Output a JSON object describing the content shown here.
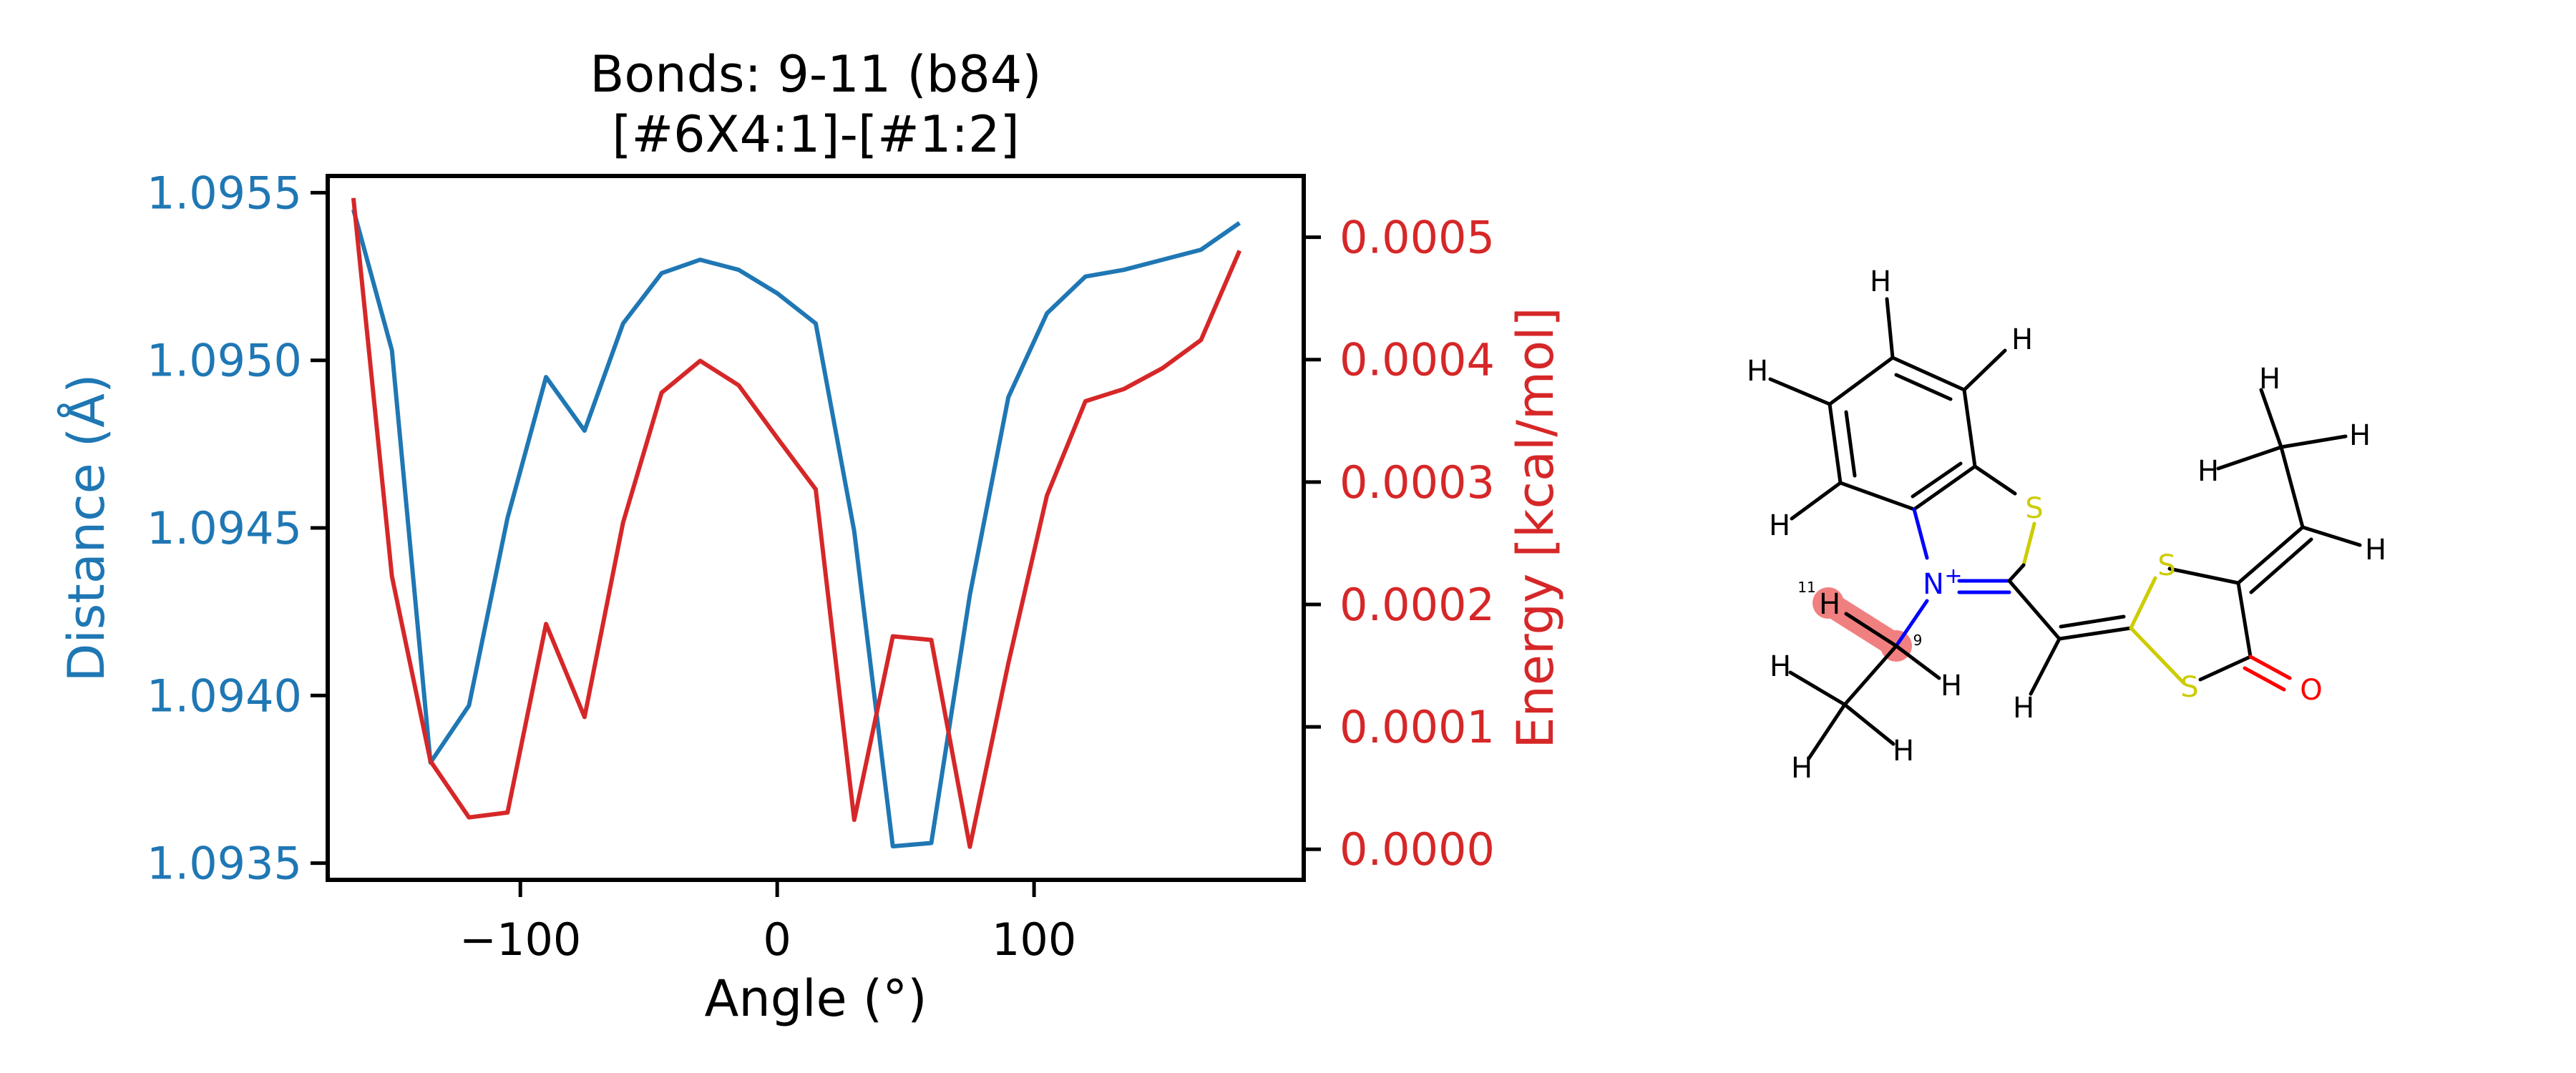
{
  "chart_data": {
    "type": "line",
    "title": "Bonds: 9-11 (b84)",
    "subtitle": "[#6X4:1]-[#1:2]",
    "xlabel": "Angle (°)",
    "ylabel": "Distance (Å)",
    "y2label": "Energy [kcal/mol]",
    "xlim": [
      -175,
      205
    ],
    "ylim": [
      1.09345,
      1.09555
    ],
    "y2lim": [
      -2.5e-05,
      0.00055
    ],
    "xticks": [
      -100,
      0,
      100
    ],
    "xtick_labels": [
      "−100",
      "0",
      "100"
    ],
    "yticks": [
      1.0935,
      1.094,
      1.0945,
      1.095,
      1.0955
    ],
    "ytick_labels": [
      "1.0935",
      "1.0940",
      "1.0945",
      "1.0950",
      "1.0955"
    ],
    "y2ticks": [
      0,
      0.0001,
      0.0002,
      0.0003,
      0.0004,
      0.0005
    ],
    "y2tick_labels": [
      "0.0000",
      "0.0001",
      "0.0002",
      "0.0003",
      "0.0004",
      "0.0005"
    ],
    "grid": false,
    "x": [
      -165,
      -150,
      -135,
      -120,
      -105,
      -90,
      -75,
      -60,
      -45,
      -30,
      -15,
      0,
      15,
      30,
      45,
      60,
      75,
      90,
      105,
      120,
      135,
      150,
      165,
      180
    ],
    "series": [
      {
        "axis": "left",
        "color": "#1f77b4",
        "values": [
          1.09545,
          1.09503,
          1.0938,
          1.09397,
          1.09453,
          1.09495,
          1.09479,
          1.09511,
          1.09526,
          1.0953,
          1.09527,
          1.0952,
          1.09511,
          1.09449,
          1.09355,
          1.09356,
          1.0943,
          1.09489,
          1.09514,
          1.09525,
          1.09527,
          1.0953,
          1.09533,
          1.09541
        ]
      },
      {
        "axis": "right",
        "color": "#d62728",
        "values": [
          0.000532,
          0.000223,
          7.2e-05,
          2.6e-05,
          3e-05,
          0.000184,
          0.000108,
          0.000267,
          0.000373,
          0.000399,
          0.000379,
          0.000336,
          0.000294,
          2.4e-05,
          0.000174,
          0.000171,
          2e-06,
          0.000152,
          0.000289,
          0.000366,
          0.000376,
          0.000393,
          0.000416,
          0.000489
        ]
      }
    ]
  },
  "molecule": {
    "atom_labels": [
      "H",
      "H",
      "H",
      "H",
      "S",
      "H",
      "H",
      "H",
      "N",
      "H",
      "S",
      "H",
      "H",
      "S",
      "O",
      "H",
      "H",
      "H"
    ],
    "charge_label": "+",
    "index_labels": [
      "11",
      "9"
    ],
    "colors": {
      "nitrogen": "#0000ff",
      "sulfur": "#cccc00",
      "oxygen": "#ff0000",
      "carbon": "#000000",
      "highlight": "#f08080"
    }
  }
}
